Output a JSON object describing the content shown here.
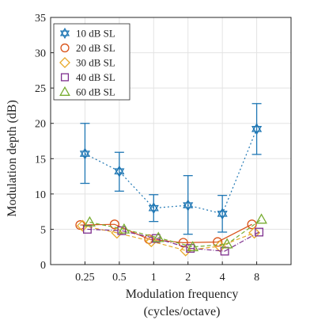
{
  "chart_data": {
    "type": "line",
    "xlabel_line1": "Modulation frequency",
    "xlabel_line2": "(cycles/octave)",
    "ylabel": "Modulation depth (dB)",
    "categories": [
      "0.25",
      "0.5",
      "1",
      "2",
      "4",
      "8"
    ],
    "ylim": [
      0,
      35
    ],
    "yticks": [
      0,
      5,
      10,
      15,
      20,
      25,
      30,
      35
    ],
    "grid": true,
    "legend_position": "top-left",
    "series": [
      {
        "name": "10 dB SL",
        "color": "#1f77b4",
        "marker": "hexagram",
        "dash": "2,3",
        "values": [
          15.7,
          13.2,
          8.0,
          8.4,
          7.2,
          19.2
        ],
        "err_low": [
          11.5,
          10.4,
          6.1,
          4.3,
          4.6,
          15.6
        ],
        "err_high": [
          20.0,
          15.9,
          9.9,
          12.6,
          9.8,
          22.8
        ]
      },
      {
        "name": "20 dB SL",
        "color": "#d95319",
        "marker": "circle",
        "dash": "",
        "values": [
          5.6,
          5.7,
          3.6,
          3.1,
          3.2,
          5.7
        ]
      },
      {
        "name": "30 dB SL",
        "color": "#e8a92a",
        "marker": "diamond",
        "dash": "5,3",
        "values": [
          5.5,
          4.5,
          3.3,
          2.0,
          2.6,
          4.5
        ]
      },
      {
        "name": "40 dB SL",
        "color": "#7e2f8e",
        "marker": "square",
        "dash": "6,2,1,2",
        "values": [
          5.0,
          4.8,
          3.7,
          2.3,
          1.9,
          4.6
        ]
      },
      {
        "name": "60 dB SL",
        "color": "#77ac30",
        "marker": "triangle",
        "dash": "5,3",
        "values": [
          6.0,
          5.0,
          3.8,
          2.5,
          2.9,
          6.4
        ]
      }
    ]
  }
}
